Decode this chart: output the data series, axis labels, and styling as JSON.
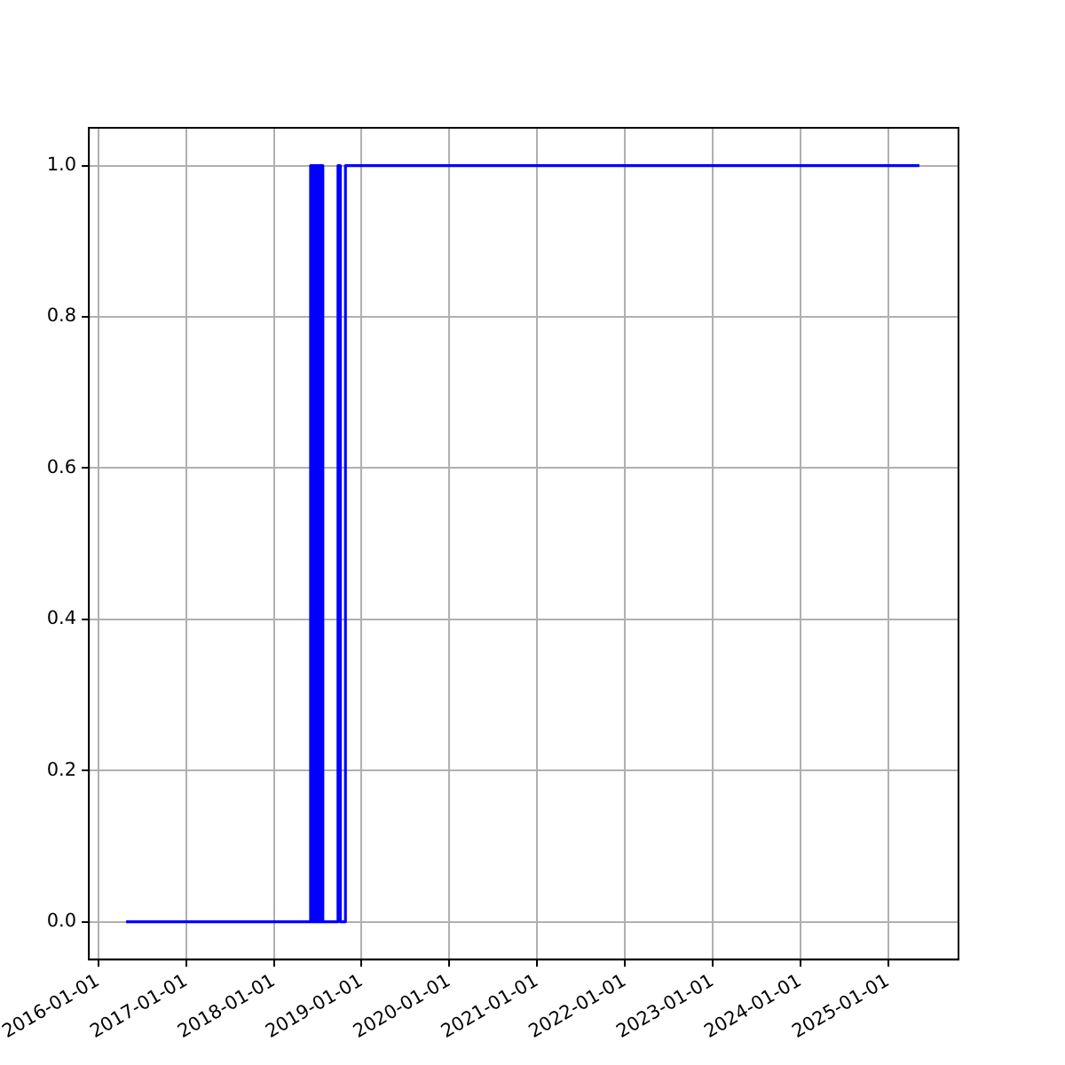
{
  "chart_data": {
    "type": "step",
    "x": [
      "2016-04-26",
      "2018-06-03",
      "2018-06-06",
      "2018-06-09",
      "2018-06-12",
      "2018-06-15",
      "2018-06-18",
      "2018-06-21",
      "2018-06-24",
      "2018-06-27",
      "2018-06-30",
      "2018-07-03",
      "2018-07-06",
      "2018-07-09",
      "2018-07-12",
      "2018-07-15",
      "2018-07-18",
      "2018-07-21",
      "2018-07-24",
      "2018-09-25",
      "2018-10-05",
      "2018-10-26",
      "2025-05-11"
    ],
    "series": [
      {
        "color": "#0000ff",
        "values": [
          0,
          1,
          0,
          1,
          0,
          1,
          0,
          1,
          0,
          1,
          0,
          1,
          0,
          1,
          0,
          1,
          0,
          1,
          0,
          1,
          0,
          1,
          1
        ]
      }
    ],
    "xlim": [
      "2015-11-23",
      "2025-10-21"
    ],
    "xticks": [
      "2016-01-01",
      "2017-01-01",
      "2018-01-01",
      "2019-01-01",
      "2020-01-01",
      "2021-01-01",
      "2022-01-01",
      "2023-01-01",
      "2024-01-01",
      "2025-01-01"
    ],
    "ylim": [
      -0.05,
      1.05
    ],
    "yticks": [
      {
        "value": 0,
        "label": "0.0"
      },
      {
        "value": 0.2,
        "label": "0.2"
      },
      {
        "value": 0.4,
        "label": "0.4"
      },
      {
        "value": 0.6,
        "label": "0.6"
      },
      {
        "value": 0.8,
        "label": "0.8"
      },
      {
        "value": 1,
        "label": "1.0"
      }
    ],
    "grid": true,
    "legend": false,
    "marker": "none",
    "line_style": "solid"
  }
}
